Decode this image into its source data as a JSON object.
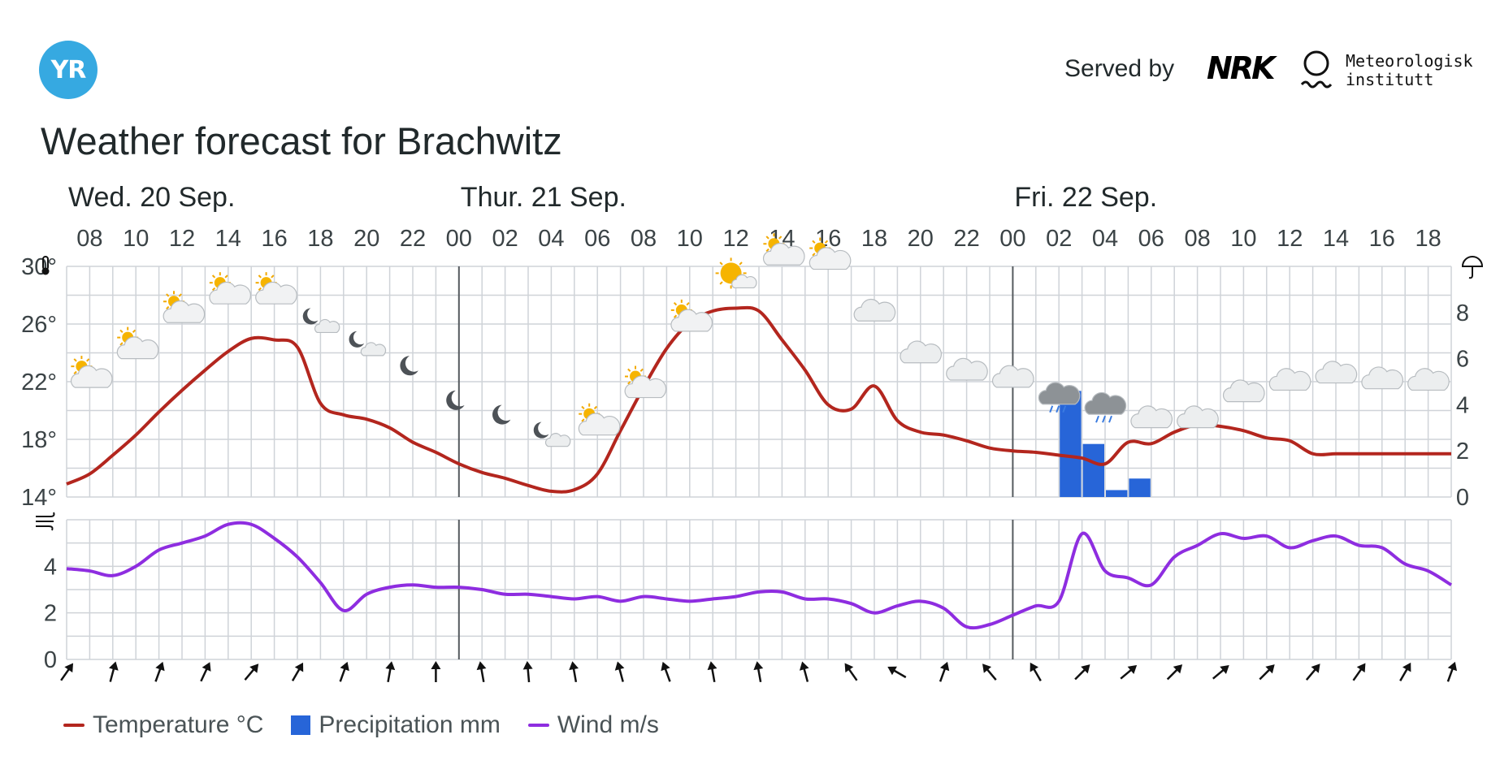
{
  "header": {
    "logo_text": "YR",
    "served_by": "Served by",
    "nrk_logo": "NRK",
    "met_lines": [
      "Meteorologisk",
      "institutt"
    ]
  },
  "title": "Weather forecast for Brachwitz",
  "colors": {
    "temperature": "#b3261e",
    "precipitation": "#2765d8",
    "wind": "#8e2de0",
    "grid": "#cfd3d8",
    "day_line": "#555a5e"
  },
  "legend": [
    {
      "label": "Temperature °C",
      "type": "line",
      "color": "#b3261e"
    },
    {
      "label": "Precipitation mm",
      "type": "box",
      "color": "#2765d8"
    },
    {
      "label": "Wind m/s",
      "type": "line",
      "color": "#8e2de0"
    }
  ],
  "chart_data": {
    "type": "line",
    "hours_start": "Wed. 20 Sep. 07:00",
    "days": [
      {
        "label": "Wed. 20 Sep.",
        "offset_hours": 0
      },
      {
        "label": "Thur. 21 Sep.",
        "offset_hours": 17
      },
      {
        "label": "Fri. 22 Sep.",
        "offset_hours": 41
      }
    ],
    "hour_ticks": [
      "08",
      "10",
      "12",
      "14",
      "16",
      "18",
      "20",
      "22",
      "00",
      "02",
      "04",
      "06",
      "08",
      "10",
      "12",
      "14",
      "16",
      "18",
      "20",
      "22",
      "00",
      "02",
      "04",
      "06",
      "08",
      "10",
      "12",
      "14",
      "16",
      "18"
    ],
    "hour_tick_offsets": [
      1,
      3,
      5,
      7,
      9,
      11,
      13,
      15,
      17,
      19,
      21,
      23,
      25,
      27,
      29,
      31,
      33,
      35,
      37,
      39,
      41,
      43,
      45,
      47,
      49,
      51,
      53,
      55,
      57,
      59
    ],
    "temperature": {
      "name": "Temperature °C",
      "axis_labels": [
        "14°",
        "18°",
        "22°",
        "26°",
        "30°"
      ],
      "axis_values": [
        14,
        18,
        22,
        26,
        30
      ],
      "ylim": [
        14,
        30
      ],
      "x_hours": [
        0,
        1,
        2,
        3,
        4,
        5,
        6,
        7,
        8,
        9,
        10,
        11,
        12,
        13,
        14,
        15,
        16,
        17,
        18,
        19,
        20,
        21,
        22,
        23,
        24,
        25,
        26,
        27,
        28,
        29,
        30,
        31,
        32,
        33,
        34,
        35,
        36,
        37,
        38,
        39,
        40,
        41,
        42,
        43,
        44,
        45,
        46,
        47,
        48,
        49,
        50,
        51,
        52,
        53,
        54,
        55,
        56,
        57,
        58,
        59,
        60
      ],
      "values": [
        14.9,
        15.6,
        16.9,
        18.3,
        19.9,
        21.4,
        22.8,
        24.1,
        25.0,
        24.9,
        24.4,
        20.5,
        19.7,
        19.4,
        18.8,
        17.8,
        17.1,
        16.3,
        15.7,
        15.3,
        14.8,
        14.4,
        14.5,
        15.6,
        18.6,
        21.6,
        24.3,
        26.1,
        26.9,
        27.1,
        26.9,
        24.9,
        22.8,
        20.4,
        20.1,
        21.7,
        19.3,
        18.5,
        18.3,
        17.9,
        17.4,
        17.2,
        17.1,
        16.9,
        16.7,
        16.3,
        17.8,
        17.7,
        18.5,
        19.0,
        18.9,
        18.6,
        18.1,
        17.9,
        17.0,
        17.0,
        17.0,
        17.0,
        17.0,
        17.0,
        17.0
      ]
    },
    "precipitation": {
      "name": "Precipitation mm",
      "axis_labels": [
        "0",
        "2",
        "4",
        "6",
        "8"
      ],
      "axis_values": [
        0,
        2,
        4,
        6,
        8
      ],
      "ylim": [
        0,
        10
      ],
      "bars": [
        {
          "hour": 43,
          "value": 4.6
        },
        {
          "hour": 44,
          "value": 2.3
        },
        {
          "hour": 45,
          "value": 0.3
        },
        {
          "hour": 46,
          "value": 0.8
        }
      ]
    },
    "wind": {
      "name": "Wind m/s",
      "axis_labels": [
        "0",
        "2",
        "4"
      ],
      "axis_values": [
        0,
        2,
        4
      ],
      "ylim": [
        0,
        6
      ],
      "values": [
        3.9,
        3.8,
        3.6,
        4.0,
        4.7,
        5.0,
        5.3,
        5.8,
        5.8,
        5.2,
        4.4,
        3.3,
        2.1,
        2.8,
        3.1,
        3.2,
        3.1,
        3.1,
        3.0,
        2.8,
        2.8,
        2.7,
        2.6,
        2.7,
        2.5,
        2.7,
        2.6,
        2.5,
        2.6,
        2.7,
        2.9,
        2.9,
        2.6,
        2.6,
        2.4,
        2.0,
        2.3,
        2.5,
        2.2,
        1.4,
        1.5,
        1.9,
        2.3,
        2.5,
        5.4,
        3.8,
        3.5,
        3.2,
        4.4,
        4.9,
        5.4,
        5.2,
        5.3,
        4.8,
        5.1,
        5.3,
        4.9,
        4.8,
        4.1,
        3.8,
        3.2
      ]
    },
    "wind_directions_deg": [
      35,
      15,
      20,
      25,
      40,
      30,
      20,
      10,
      0,
      350,
      355,
      350,
      345,
      340,
      350,
      350,
      345,
      325,
      300,
      20,
      320,
      330,
      45,
      50,
      45,
      50,
      45,
      40,
      35,
      30,
      20
    ]
  },
  "weather_icons": {
    "hours": [
      2,
      4,
      6,
      8,
      10,
      12,
      14,
      16,
      18,
      20,
      22,
      24,
      26,
      28,
      30,
      32,
      34,
      36,
      38,
      40,
      42,
      44,
      46,
      48,
      50,
      52,
      54,
      56,
      58,
      60
    ],
    "types": [
      "partly-cloudy",
      "partly-cloudy",
      "partly-cloudy",
      "partly-cloudy",
      "partly-cloudy",
      "moon-cloud",
      "moon-cloud",
      "moon",
      "moon",
      "moon",
      "moon-cloud",
      "partly-cloudy",
      "partly-cloudy",
      "partly-cloudy",
      "sunny-cloud",
      "partly-cloudy",
      "partly-cloudy",
      "cloudy",
      "cloudy",
      "cloudy",
      "cloudy",
      "rain-cloud",
      "rain-cloud",
      "cloudy",
      "cloudy",
      "cloudy",
      "cloudy",
      "cloudy",
      "cloudy",
      "cloudy"
    ],
    "levels": [
      22.5,
      24.5,
      27.0,
      28.3,
      28.3,
      26.2,
      24.6,
      23.0,
      20.6,
      19.6,
      18.3,
      19.2,
      21.8,
      26.4,
      29.3,
      31.0,
      30.7,
      27.0,
      24.1,
      22.9,
      22.4,
      21.0,
      20.3,
      19.6,
      19.6,
      21.4,
      22.2,
      22.7,
      22.3,
      22.2
    ]
  }
}
